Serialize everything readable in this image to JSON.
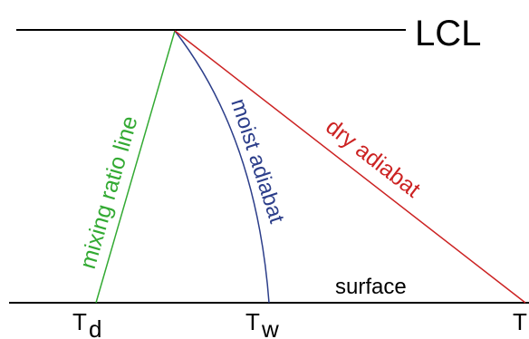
{
  "labels": {
    "lcl": "LCL",
    "surface": "surface",
    "mixing_ratio_line": "mixing ratio line",
    "moist_adiabat": "moist adiabat",
    "dry_adiabat": "dry adiabat",
    "td_base": "T",
    "td_sub": "d",
    "tw_base": "T",
    "tw_sub": "w",
    "t": "T"
  },
  "colors": {
    "level_lines": "#000000",
    "mixing_ratio_line": "#33aa33",
    "moist_adiabat": "#2c3e8a",
    "dry_adiabat": "#cc2222"
  }
}
